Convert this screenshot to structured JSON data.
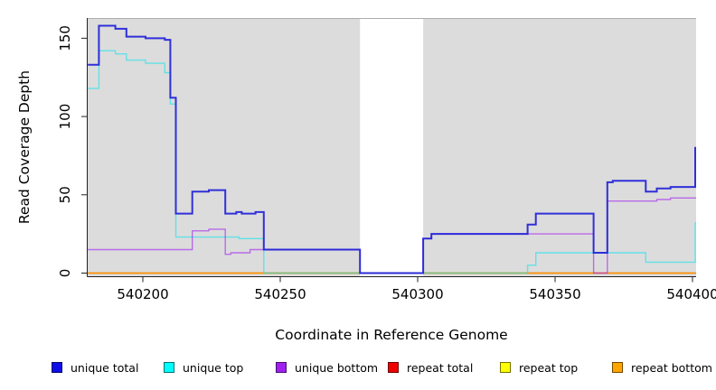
{
  "chart_data": {
    "type": "line",
    "subtype": "step",
    "title": "",
    "xlabel": "Coordinate in Reference Genome",
    "ylabel": "Read Coverage Depth",
    "x_ticks": [
      "540200",
      "540250",
      "540300",
      "540350",
      "540400"
    ],
    "x_tick_values": [
      540200,
      540250,
      540300,
      540350,
      540400
    ],
    "y_ticks": [
      "0",
      "50",
      "100",
      "150"
    ],
    "y_tick_values": [
      0,
      50,
      100,
      150
    ],
    "xlim": [
      540180,
      540401
    ],
    "ylim": [
      0,
      165
    ],
    "grid": false,
    "legend_position": "bottom",
    "panel_background": "#DCDCDC",
    "no_data_gap": {
      "from": 540279,
      "to": 540302,
      "fill": "#FFFFFF"
    },
    "series": [
      {
        "name": "unique total",
        "legend_color": "#0D0DE8",
        "line_color": "#2626D8",
        "opacity": 0.95,
        "width": 2,
        "points": [
          [
            540180,
            133
          ],
          [
            540184,
            158
          ],
          [
            540190,
            156
          ],
          [
            540194,
            151
          ],
          [
            540201,
            150
          ],
          [
            540208,
            149
          ],
          [
            540210,
            112
          ],
          [
            540212,
            38
          ],
          [
            540218,
            52
          ],
          [
            540224,
            53
          ],
          [
            540230,
            38
          ],
          [
            540234,
            39
          ],
          [
            540236,
            38
          ],
          [
            540241,
            39
          ],
          [
            540244,
            15
          ],
          [
            540279,
            0
          ],
          [
            540302,
            22
          ],
          [
            540305,
            25
          ],
          [
            540340,
            31
          ],
          [
            540343,
            38
          ],
          [
            540364,
            13
          ],
          [
            540369,
            58
          ],
          [
            540371,
            59
          ],
          [
            540383,
            52
          ],
          [
            540387,
            54
          ],
          [
            540392,
            55
          ],
          [
            540401,
            80
          ]
        ]
      },
      {
        "name": "unique top",
        "legend_color": "#00FFFF",
        "line_color": "#00E5EE",
        "opacity": 0.55,
        "width": 1.4,
        "points": [
          [
            540180,
            118
          ],
          [
            540184,
            142
          ],
          [
            540190,
            140
          ],
          [
            540194,
            136
          ],
          [
            540201,
            134
          ],
          [
            540208,
            128
          ],
          [
            540210,
            108
          ],
          [
            540212,
            23
          ],
          [
            540235,
            22
          ],
          [
            540244,
            0
          ],
          [
            540340,
            5
          ],
          [
            540343,
            13
          ],
          [
            540383,
            7
          ],
          [
            540401,
            32
          ]
        ]
      },
      {
        "name": "unique bottom",
        "legend_color": "#A020F0",
        "line_color": "#A020F0",
        "opacity": 0.6,
        "width": 1.4,
        "points": [
          [
            540180,
            15
          ],
          [
            540218,
            27
          ],
          [
            540224,
            28
          ],
          [
            540230,
            12
          ],
          [
            540232,
            13
          ],
          [
            540239,
            15
          ],
          [
            540279,
            0
          ],
          [
            540302,
            22
          ],
          [
            540305,
            25
          ],
          [
            540364,
            0
          ],
          [
            540369,
            46
          ],
          [
            540387,
            47
          ],
          [
            540392,
            48
          ]
        ]
      },
      {
        "name": "repeat total",
        "legend_color": "#EE0000",
        "line_color": "#DD0000",
        "opacity": 1,
        "width": 1.2,
        "points": [
          [
            540180,
            0
          ]
        ]
      },
      {
        "name": "repeat top",
        "legend_color": "#FFFF00",
        "line_color": "#FFFF00",
        "opacity": 1,
        "width": 1.2,
        "points": [
          [
            540180,
            0
          ]
        ]
      },
      {
        "name": "repeat bottom",
        "legend_color": "#FFA500",
        "line_color": "#FF8C00",
        "opacity": 1,
        "width": 1.5,
        "points": [
          [
            540180,
            0
          ]
        ]
      }
    ]
  }
}
